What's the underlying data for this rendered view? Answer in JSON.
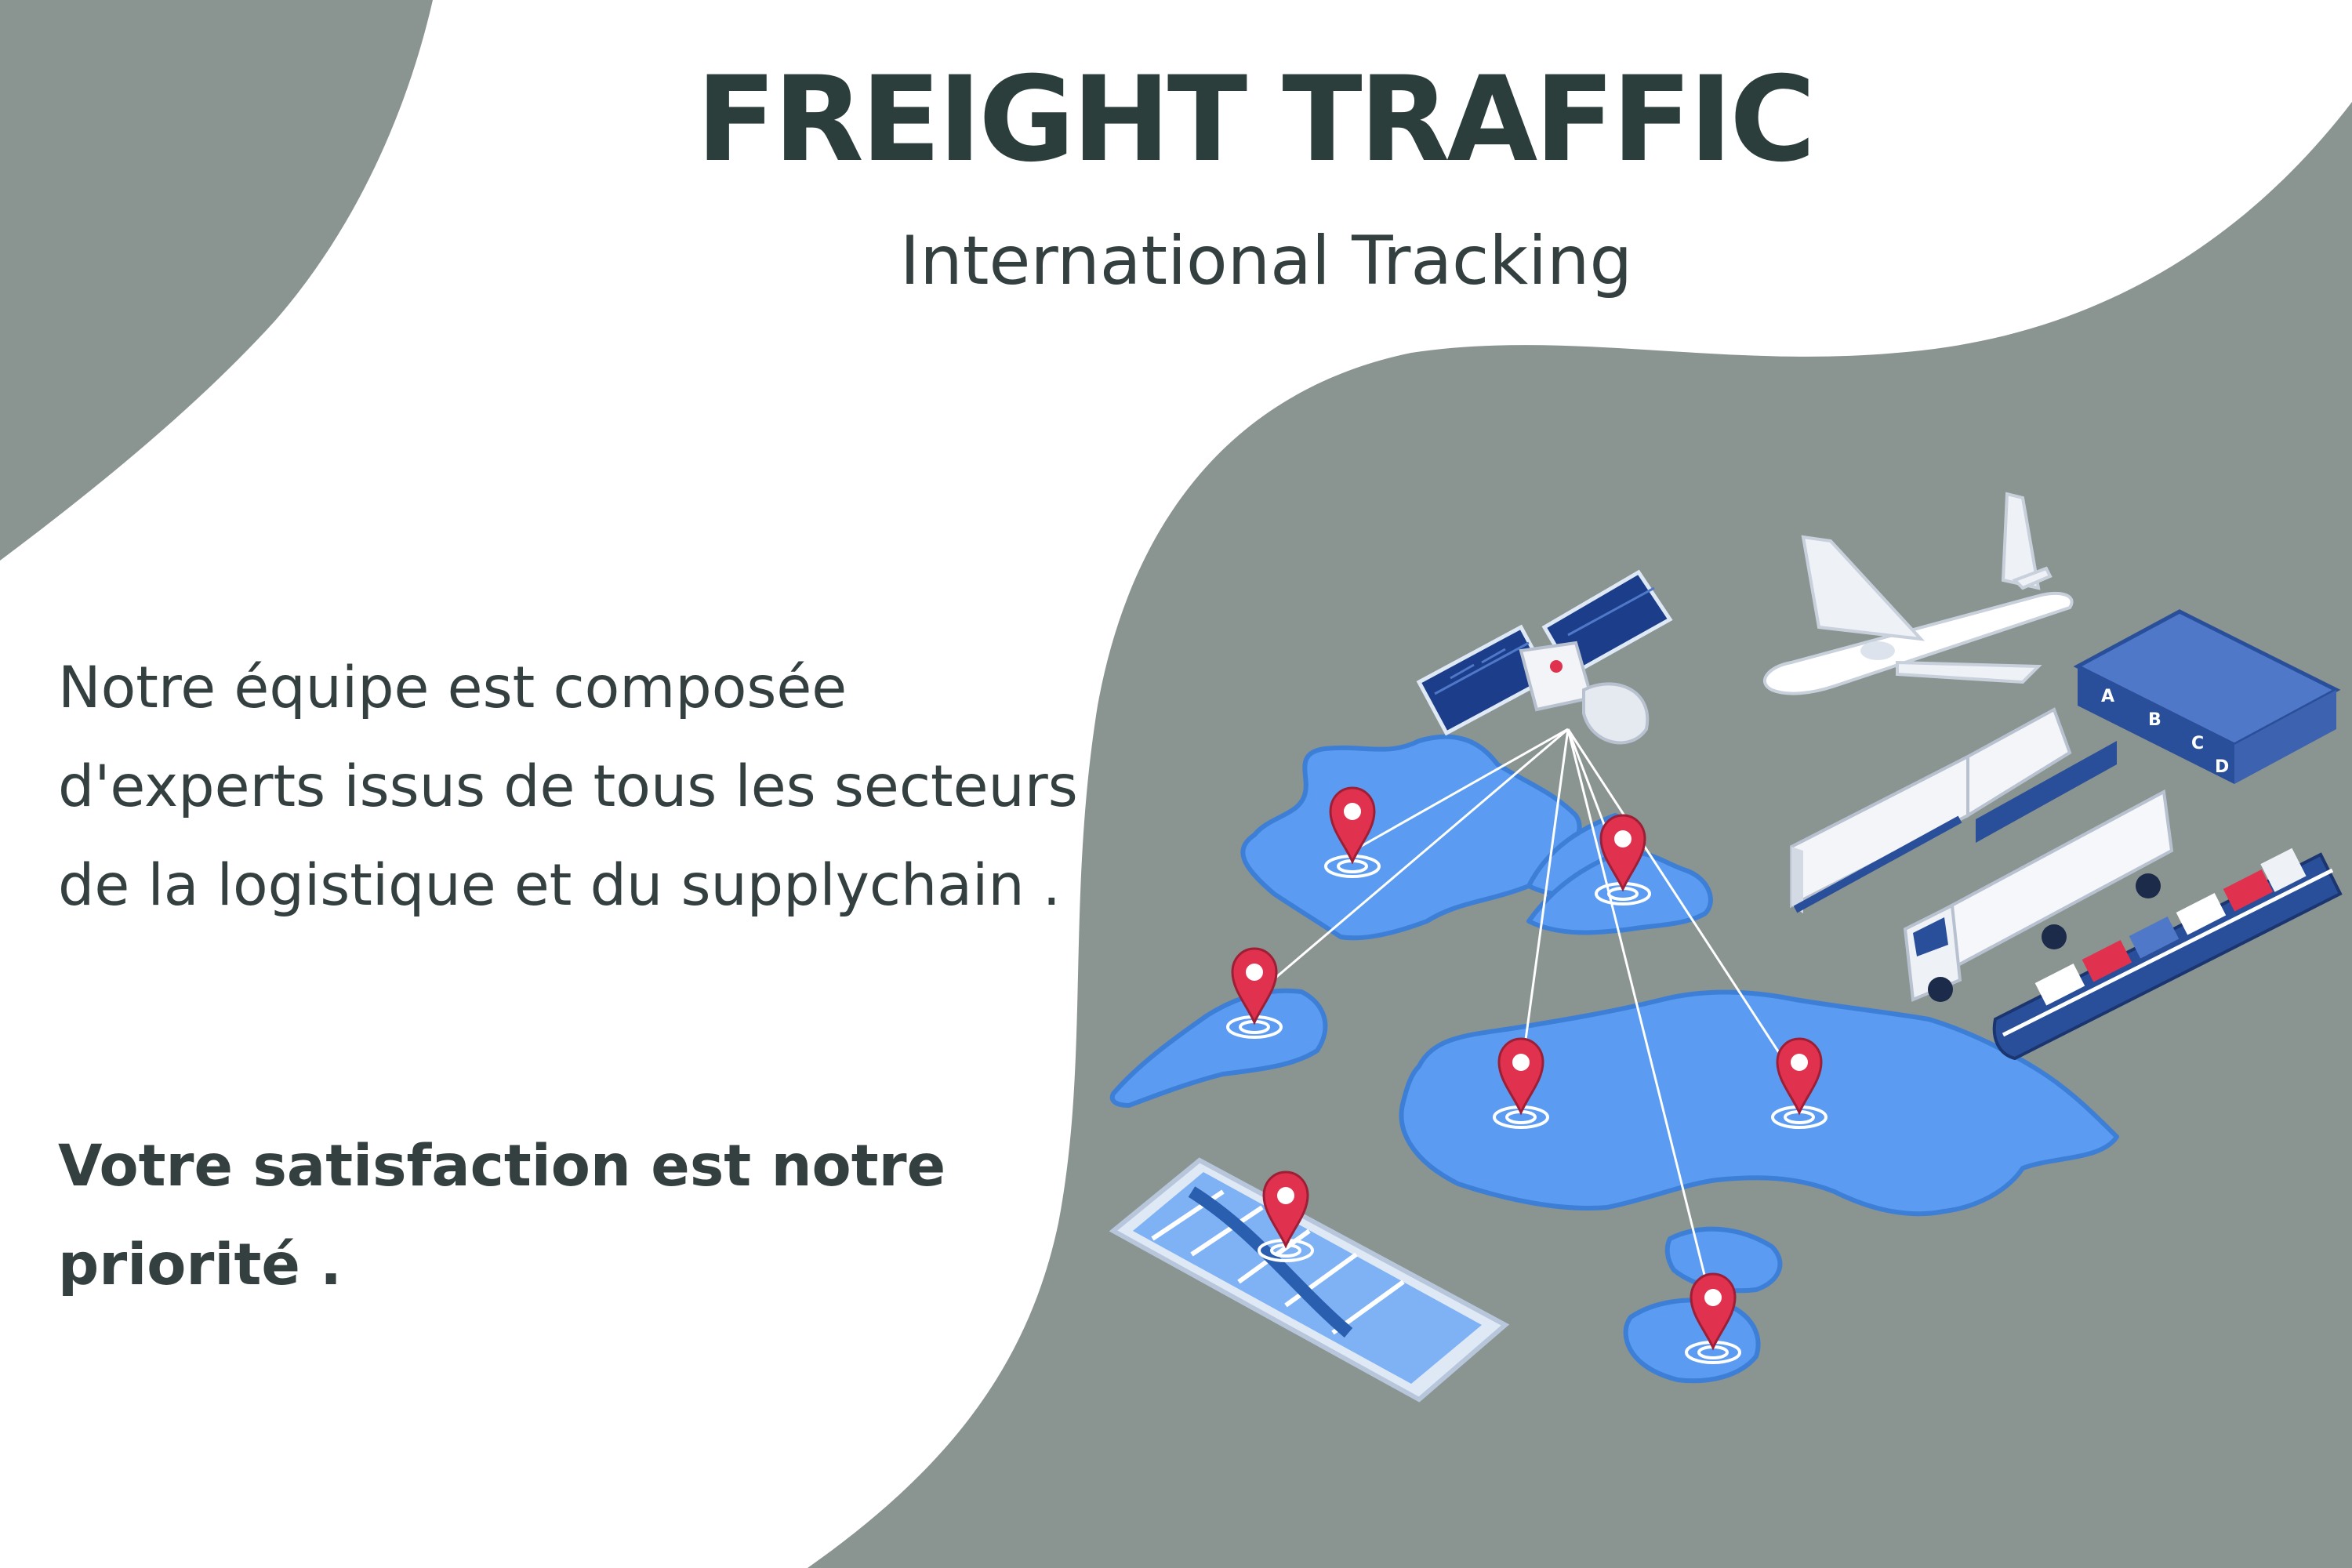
{
  "header": {
    "title": "FREIGHT TRAFFIC",
    "subtitle": "International Tracking"
  },
  "content": {
    "description": "Notre équipe est composée d'experts issus de tous les secteurs de la logistique et du supplychain .",
    "tagline": "Votre satisfaction est notre priorité ."
  },
  "colors": {
    "background": "#ffffff",
    "blob": "#8a9490",
    "heading": "#2c3e3c",
    "text": "#34403f",
    "map": "#5b9cf2",
    "pin": "#e0314f",
    "solar_panel": "#1c3d8a"
  },
  "illustration": {
    "icons": [
      "satellite-icon",
      "airplane-icon",
      "warehouse-icon",
      "freight-train-icon",
      "truck-icon",
      "cargo-ship-icon",
      "smartphone-map-icon",
      "location-pin-icon"
    ],
    "warehouse_door_labels": [
      "A",
      "B",
      "C",
      "D"
    ]
  }
}
